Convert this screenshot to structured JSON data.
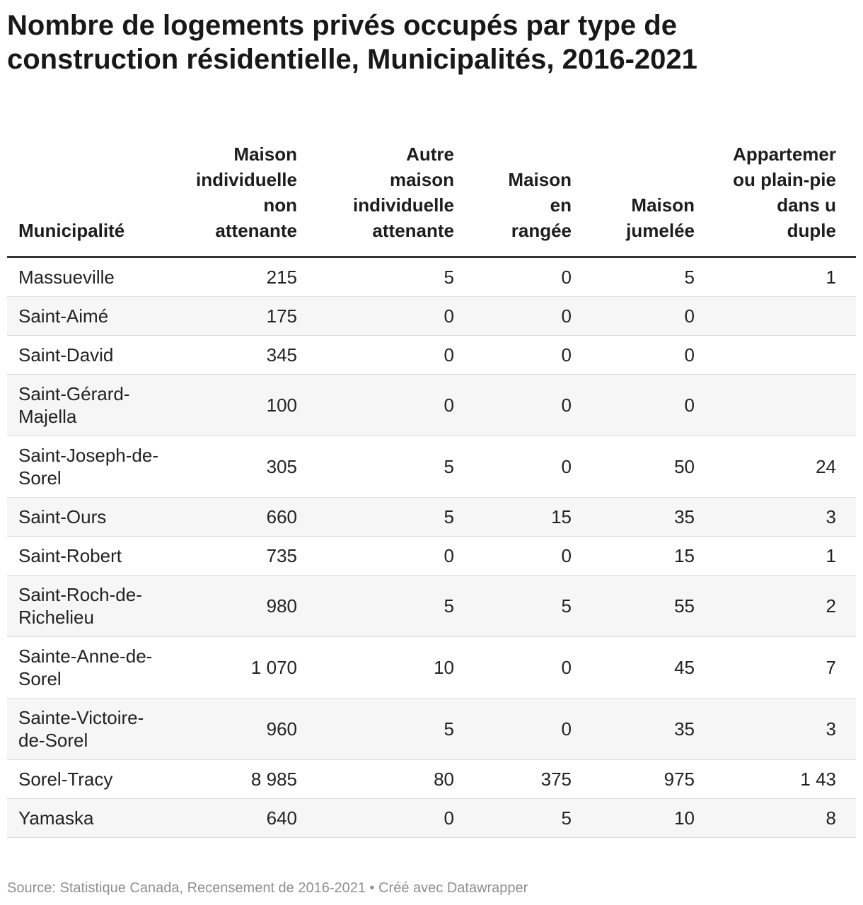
{
  "title": "Nombre de logements privés occupés par type de construction résidentielle, Municipalités, 2016-2021",
  "footer": {
    "source": "Source: Statistique Canada, Recensement de 2016-2021 • Créé avec Datawrapper"
  },
  "chart_data": {
    "type": "table",
    "title": "Nombre de logements privés occupés par type de construction résidentielle, Municipalités, 2016-2021",
    "columns": [
      "Municipalité",
      "Maison individuelle non attenante",
      "Autre maison individuelle attenante",
      "Maison en rangée",
      "Maison jumelée",
      "Appartement ou plain-pied dans un duplex"
    ],
    "header_lines": [
      [
        "Municipalité"
      ],
      [
        "Maison",
        "individuelle",
        "non",
        "attenante"
      ],
      [
        "Autre",
        "maison",
        "individuelle",
        "attenante"
      ],
      [
        "Maison",
        "en",
        "rangée"
      ],
      [
        "Maison",
        "jumelée"
      ],
      [
        "Appartemer",
        "ou plain-pie",
        "dans u",
        "duple"
      ]
    ],
    "rows": [
      {
        "municipalite": "Massueville",
        "c1": "215",
        "c2": "5",
        "c3": "0",
        "c4": "5",
        "c5": "1"
      },
      {
        "municipalite": "Saint-Aimé",
        "c1": "175",
        "c2": "0",
        "c3": "0",
        "c4": "0",
        "c5": ""
      },
      {
        "municipalite": "Saint-David",
        "c1": "345",
        "c2": "0",
        "c3": "0",
        "c4": "0",
        "c5": ""
      },
      {
        "municipalite": "Saint-Gérard-Majella",
        "c1": "100",
        "c2": "0",
        "c3": "0",
        "c4": "0",
        "c5": ""
      },
      {
        "municipalite": "Saint-Joseph-de-Sorel",
        "c1": "305",
        "c2": "5",
        "c3": "0",
        "c4": "50",
        "c5": "24"
      },
      {
        "municipalite": "Saint-Ours",
        "c1": "660",
        "c2": "5",
        "c3": "15",
        "c4": "35",
        "c5": "3"
      },
      {
        "municipalite": "Saint-Robert",
        "c1": "735",
        "c2": "0",
        "c3": "0",
        "c4": "15",
        "c5": "1"
      },
      {
        "municipalite": "Saint-Roch-de-Richelieu",
        "c1": "980",
        "c2": "5",
        "c3": "5",
        "c4": "55",
        "c5": "2"
      },
      {
        "municipalite": "Sainte-Anne-de-Sorel",
        "c1": "1 070",
        "c2": "10",
        "c3": "0",
        "c4": "45",
        "c5": "7"
      },
      {
        "municipalite": "Sainte-Victoire-de-Sorel",
        "c1": "960",
        "c2": "5",
        "c3": "0",
        "c4": "35",
        "c5": "3"
      },
      {
        "municipalite": "Sorel-Tracy",
        "c1": "8 985",
        "c2": "80",
        "c3": "375",
        "c4": "975",
        "c5": "1 43"
      },
      {
        "municipalite": "Yamaska",
        "c1": "640",
        "c2": "0",
        "c3": "5",
        "c4": "10",
        "c5": "8"
      }
    ]
  }
}
